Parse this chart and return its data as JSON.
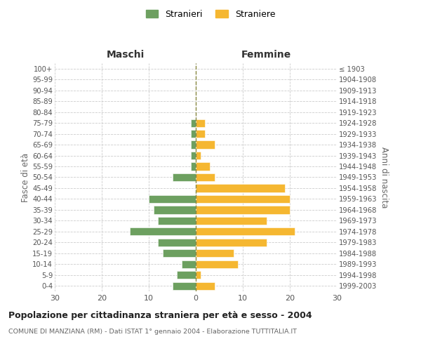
{
  "age_groups": [
    "100+",
    "95-99",
    "90-94",
    "85-89",
    "80-84",
    "75-79",
    "70-74",
    "65-69",
    "60-64",
    "55-59",
    "50-54",
    "45-49",
    "40-44",
    "35-39",
    "30-34",
    "25-29",
    "20-24",
    "15-19",
    "10-14",
    "5-9",
    "0-4"
  ],
  "birth_years": [
    "≤ 1903",
    "1904-1908",
    "1909-1913",
    "1914-1918",
    "1919-1923",
    "1924-1928",
    "1929-1933",
    "1934-1938",
    "1939-1943",
    "1944-1948",
    "1949-1953",
    "1954-1958",
    "1959-1963",
    "1964-1968",
    "1969-1973",
    "1974-1978",
    "1979-1983",
    "1984-1988",
    "1989-1993",
    "1994-1998",
    "1999-2003"
  ],
  "maschi": [
    0,
    0,
    0,
    0,
    0,
    1,
    1,
    1,
    1,
    1,
    5,
    0,
    10,
    9,
    8,
    14,
    8,
    7,
    3,
    4,
    5
  ],
  "femmine": [
    0,
    0,
    0,
    0,
    0,
    2,
    2,
    4,
    1,
    3,
    4,
    19,
    20,
    20,
    15,
    21,
    15,
    8,
    9,
    1,
    4
  ],
  "color_maschi": "#6da060",
  "color_femmine": "#f5b731",
  "title_main": "Popolazione per cittadinanza straniera per età e sesso - 2004",
  "title_sub": "COMUNE DI MANZIANA (RM) - Dati ISTAT 1° gennaio 2004 - Elaborazione TUTTITALIA.IT",
  "label_maschi": "Maschi",
  "label_femmine": "Femmine",
  "legend_stranieri": "Stranieri",
  "legend_straniere": "Straniere",
  "ylabel_left": "Fasce di età",
  "ylabel_right": "Anni di nascita",
  "xlim": 30,
  "background_color": "#ffffff",
  "grid_color": "#cccccc"
}
